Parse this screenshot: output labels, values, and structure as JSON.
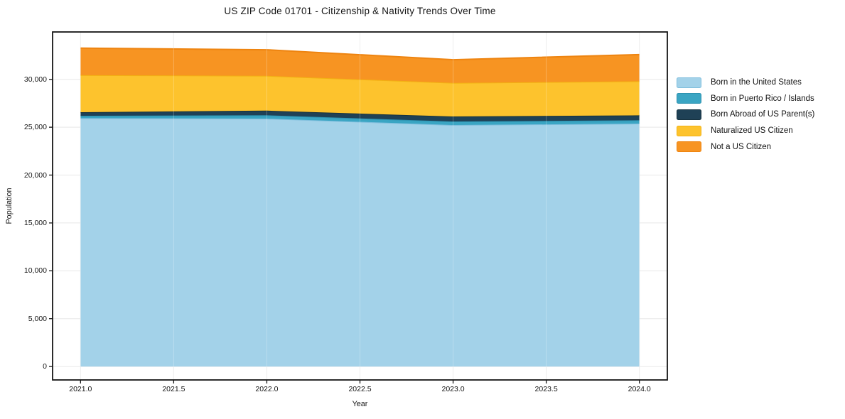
{
  "chart_data": {
    "type": "area",
    "stacked": true,
    "title": "US ZIP Code 01701 - Citizenship & Nativity Trends Over Time",
    "xlabel": "Year",
    "ylabel": "Population",
    "x": [
      2021,
      2022,
      2023,
      2024
    ],
    "series": [
      {
        "name": "Born in the United States",
        "fill": "#a3d2e9",
        "line": "#7fbedd",
        "values": [
          25950,
          25900,
          25230,
          25380
        ]
      },
      {
        "name": "Born in Puerto Rico / Islands",
        "fill": "#3aa5c3",
        "line": "#2d92b0",
        "values": [
          240,
          350,
          370,
          350
        ]
      },
      {
        "name": "Born Abroad of US Parent(s)",
        "fill": "#1f4156",
        "line": "#16323f",
        "values": [
          380,
          480,
          520,
          510
        ]
      },
      {
        "name": "Naturalized US Citizen",
        "fill": "#fdc32d",
        "line": "#f2b112",
        "values": [
          3870,
          3640,
          3510,
          3560
        ]
      },
      {
        "name": "Not a US Citizen",
        "fill": "#f79422",
        "line": "#ee8410",
        "values": [
          2820,
          2720,
          2420,
          2790
        ]
      }
    ],
    "cumulative_totals": [
      33260,
      33090,
      32050,
      32590
    ],
    "xlim": [
      2020.85,
      2024.15
    ],
    "ylim": [
      -1400,
      34950
    ],
    "xticks": [
      2021.0,
      2021.5,
      2022.0,
      2022.5,
      2023.0,
      2023.5,
      2024.0
    ],
    "xtick_labels": [
      "2021.0",
      "2021.5",
      "2022.0",
      "2022.5",
      "2023.0",
      "2023.5",
      "2024.0"
    ],
    "yticks": [
      0,
      5000,
      10000,
      15000,
      20000,
      25000,
      30000
    ],
    "ytick_labels": [
      "0",
      "5,000",
      "10,000",
      "15,000",
      "20,000",
      "25,000",
      "30,000"
    ],
    "grid": true,
    "legend_position": "right-outside"
  },
  "colors": {
    "grid": "#e8e8e8",
    "axis": "#151515",
    "text": "#151515",
    "background": "#ffffff"
  }
}
